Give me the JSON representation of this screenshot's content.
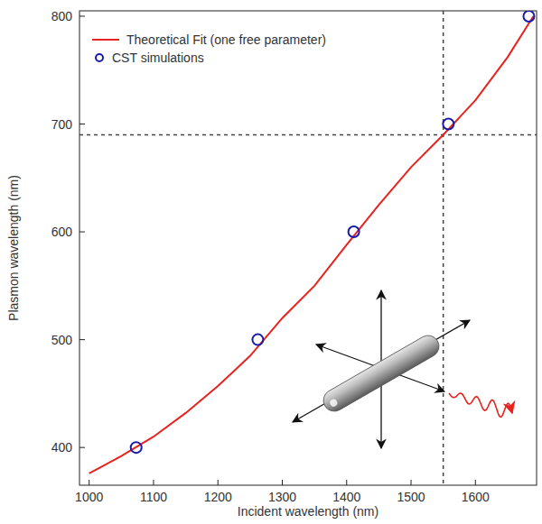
{
  "chart_data": {
    "type": "line",
    "x_label": "Incident wavelength (nm)",
    "y_label": "Plasmon wavelength (nm)",
    "series": [
      {
        "name": "Theoretical Fit (one free parameter)",
        "type": "line",
        "color": "#e8231f",
        "line_style": "solid",
        "x": [
          1000,
          1050,
          1100,
          1150,
          1200,
          1250,
          1300,
          1350,
          1400,
          1450,
          1500,
          1550,
          1600,
          1650,
          1690
        ],
        "values": [
          376,
          392,
          410,
          432,
          457,
          485,
          520,
          550,
          588,
          625,
          660,
          690,
          722,
          762,
          800
        ]
      },
      {
        "name": "CST simulations",
        "type": "scatter",
        "color": "#1a1aa8",
        "marker": "open-circle",
        "x": [
          1073,
          1262,
          1411,
          1558,
          1683
        ],
        "values": [
          400,
          500,
          600,
          700,
          800
        ]
      }
    ],
    "vlines": [
      1550
    ],
    "hlines": [
      690
    ],
    "xlim": [
      985,
      1695
    ],
    "ylim": [
      365,
      805
    ],
    "xticks": [
      1000,
      1100,
      1200,
      1300,
      1400,
      1500,
      1600
    ],
    "yticks": [
      400,
      500,
      600,
      700,
      800
    ],
    "legend": "upper left",
    "grid": false
  }
}
